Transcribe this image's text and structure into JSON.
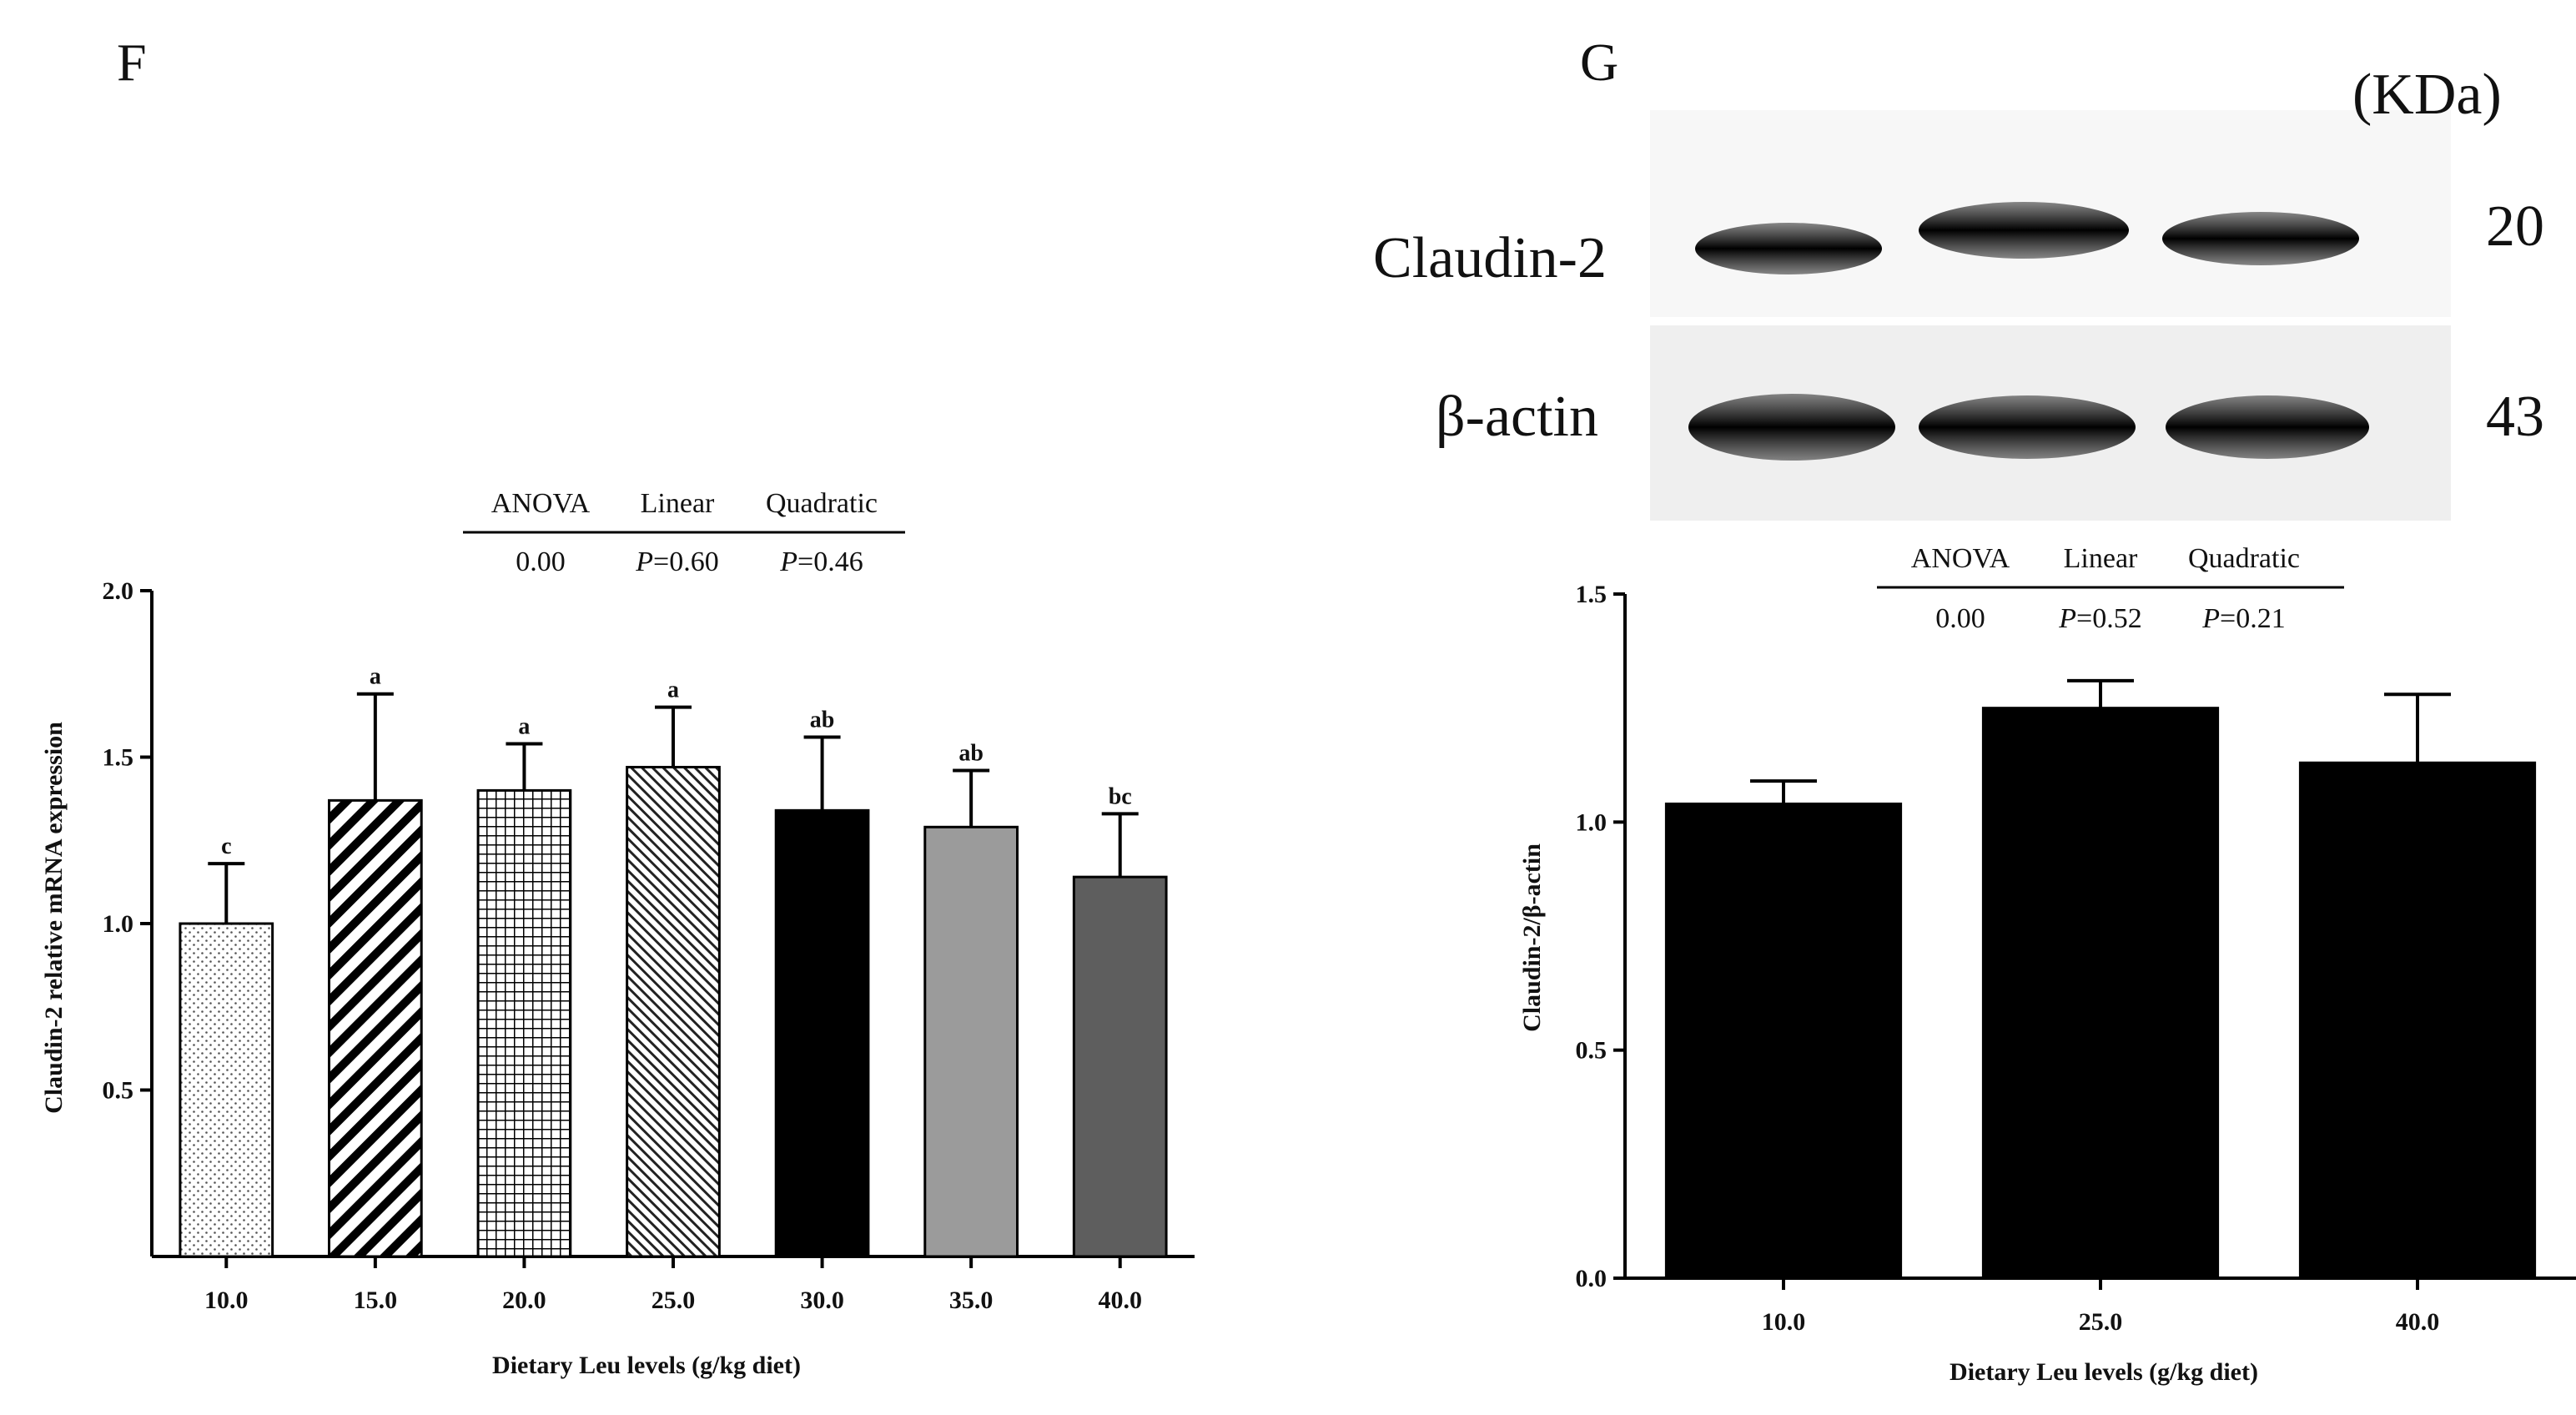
{
  "panels": {
    "F": {
      "letter": "F"
    },
    "G": {
      "letter": "G"
    }
  },
  "chart_data": [
    {
      "type": "bar",
      "panel": "F",
      "categories": [
        "10.0",
        "15.0",
        "20.0",
        "25.0",
        "30.0",
        "35.0",
        "40.0"
      ],
      "values": [
        1.0,
        1.37,
        1.4,
        1.47,
        1.34,
        1.29,
        1.14
      ],
      "errors": [
        0.18,
        0.32,
        0.14,
        0.18,
        0.22,
        0.17,
        0.19
      ],
      "letters": [
        "c",
        "a",
        "a",
        "a",
        "ab",
        "ab",
        "bc"
      ],
      "fills": [
        "dots",
        "diag-thick",
        "grid",
        "diag-thin",
        "#000000",
        "#9b9b9b",
        "#5e5e5e"
      ],
      "xlabel": "Dietary Leu levels (g/kg diet)",
      "ylabel": "Claudin-2 relative mRNA expression",
      "ylim": [
        0,
        2.0
      ],
      "yticks": [
        "0.5",
        "1.0",
        "1.5",
        "2.0"
      ],
      "ytick_values": [
        0.5,
        1.0,
        1.5,
        2.0
      ],
      "stats_header": [
        "ANOVA",
        "Linear",
        "Quadratic"
      ],
      "stats_values": [
        {
          "prefix": "",
          "value": "0.00"
        },
        {
          "prefix": "P",
          "value": "=0.60"
        },
        {
          "prefix": "P",
          "value": "=0.46"
        }
      ]
    },
    {
      "type": "bar",
      "panel": "G",
      "categories": [
        "10.0",
        "25.0",
        "40.0"
      ],
      "values": [
        1.04,
        1.25,
        1.13
      ],
      "errors": [
        0.05,
        0.06,
        0.15
      ],
      "fills": [
        "#000000",
        "#000000",
        "#000000"
      ],
      "xlabel": "Dietary Leu levels (g/kg diet)",
      "ylabel": "Claudin-2/β-actin",
      "ylim": [
        0,
        1.5
      ],
      "yticks": [
        "0.0",
        "0.5",
        "1.0",
        "1.5"
      ],
      "ytick_values": [
        0.0,
        0.5,
        1.0,
        1.5
      ],
      "stats_header": [
        "ANOVA",
        "Linear",
        "Quadratic"
      ],
      "stats_values": [
        {
          "prefix": "",
          "value": "0.00"
        },
        {
          "prefix": "P",
          "value": "=0.52"
        },
        {
          "prefix": "P",
          "value": "=0.21"
        }
      ]
    }
  ],
  "blot": {
    "unit": "(KDa)",
    "rows": [
      {
        "protein": "Claudin-2",
        "kda": "20"
      },
      {
        "protein": "β-actin",
        "kda": "43"
      }
    ]
  }
}
